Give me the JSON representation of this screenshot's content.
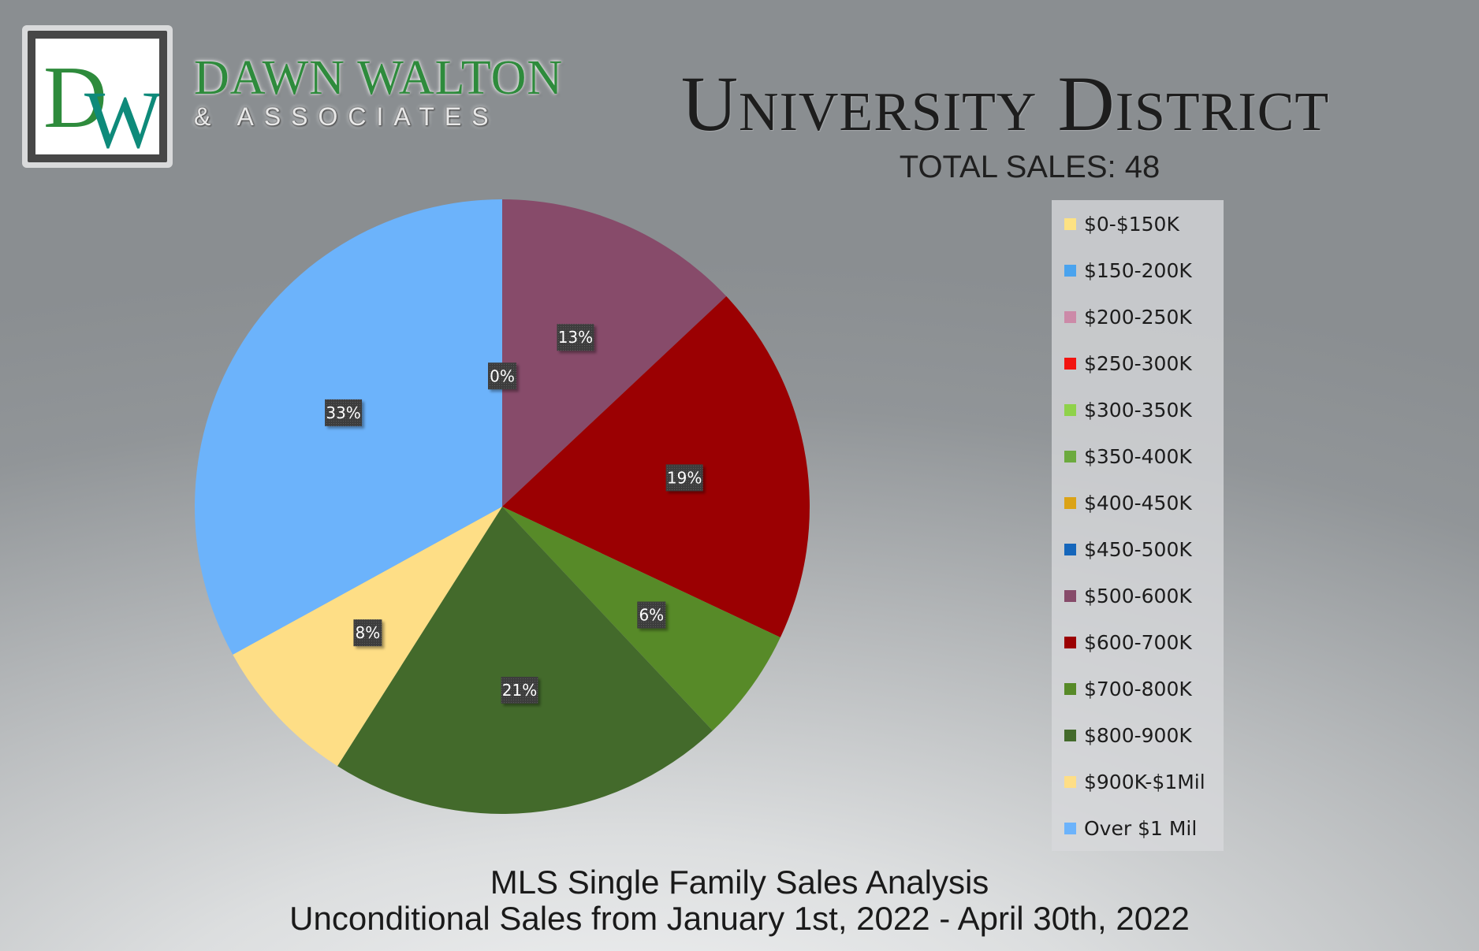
{
  "logo": {
    "monogram": "DW",
    "name": "DAWN WALTON",
    "tagline": "& ASSOCIATES",
    "colors": {
      "green": "#2e8b3c",
      "teal": "#0e8a7a"
    }
  },
  "header": {
    "title": "University District",
    "total_sales": "TOTAL SALES: 48"
  },
  "footer": {
    "line1": "MLS Single Family Sales Analysis",
    "line2": "Unconditional Sales from January 1st, 2022 - April 30th, 2022"
  },
  "chart_data": {
    "type": "pie",
    "title": "University District",
    "legend_position": "right",
    "series": [
      {
        "label": "$0-$150K",
        "value": 0,
        "pct_label": "",
        "color": "#fde283"
      },
      {
        "label": "$150-200K",
        "value": 0,
        "pct_label": "",
        "color": "#4aa3ee"
      },
      {
        "label": "$200-250K",
        "value": 0,
        "pct_label": "",
        "color": "#cc8aa8"
      },
      {
        "label": "$250-300K",
        "value": 0,
        "pct_label": "",
        "color": "#f2130f"
      },
      {
        "label": "$300-350K",
        "value": 0,
        "pct_label": "",
        "color": "#8fd24a"
      },
      {
        "label": "$350-400K",
        "value": 0,
        "pct_label": "",
        "color": "#6caa3e"
      },
      {
        "label": "$400-450K",
        "value": 0,
        "pct_label": "",
        "color": "#dba317"
      },
      {
        "label": "$450-500K",
        "value": 0,
        "pct_label": "0%",
        "color": "#1566bb"
      },
      {
        "label": "$500-600K",
        "value": 13,
        "pct_label": "13%",
        "color": "#874b6a"
      },
      {
        "label": "$600-700K",
        "value": 19,
        "pct_label": "19%",
        "color": "#9b0002"
      },
      {
        "label": "$700-800K",
        "value": 6,
        "pct_label": "6%",
        "color": "#578a28"
      },
      {
        "label": "$800-900K",
        "value": 21,
        "pct_label": "21%",
        "color": "#436a2b"
      },
      {
        "label": "$900K-$1Mil",
        "value": 8,
        "pct_label": "8%",
        "color": "#fede86"
      },
      {
        "label": "Over $1 Mil",
        "value": 33,
        "pct_label": "33%",
        "color": "#6cb3fb"
      }
    ]
  }
}
